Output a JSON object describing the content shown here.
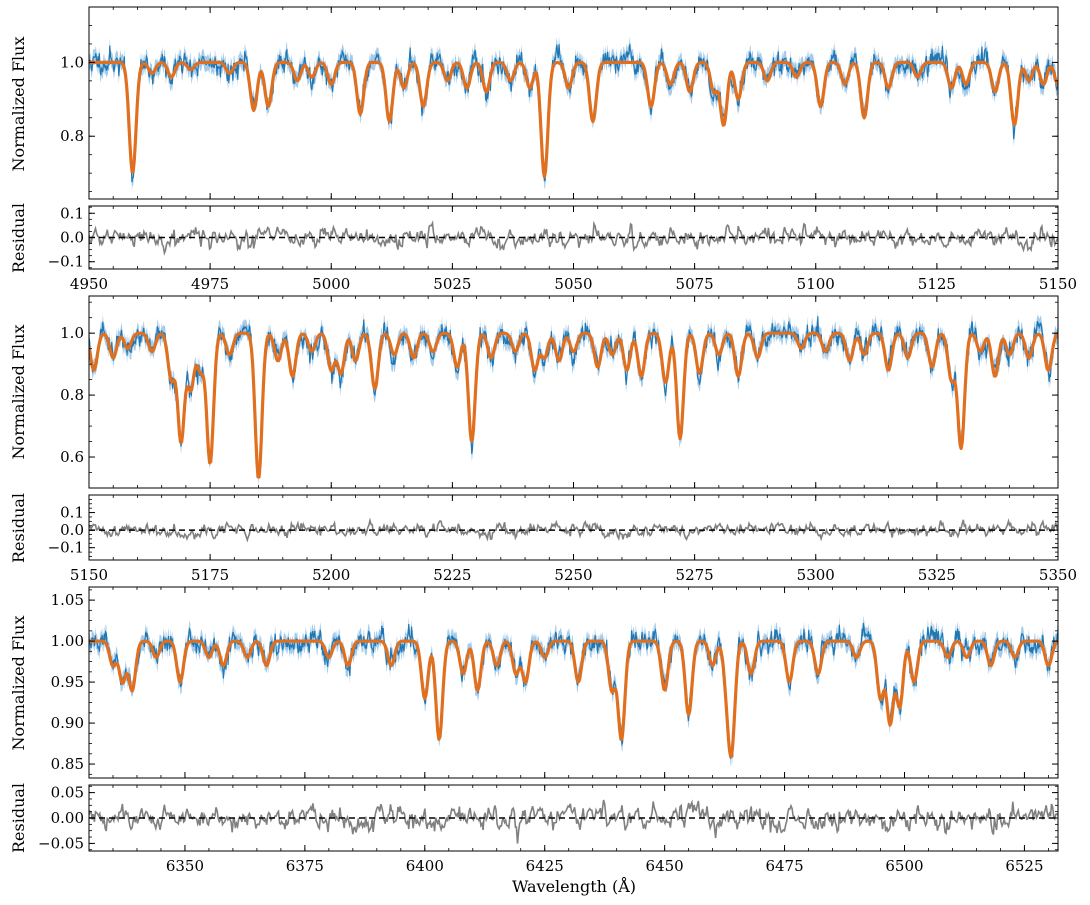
{
  "figure": {
    "xlabel": "Wavelength (Å)"
  },
  "colors": {
    "observed": "#1f77b4",
    "observed_error_band": "#a6cbe8",
    "model": "#e07020",
    "residual": "#808080",
    "zero_line": "#000000"
  },
  "chart_data": [
    {
      "type": "line",
      "panel": "spectrum",
      "ylabel": "Normalized Flux",
      "xlim": [
        4950,
        5150
      ],
      "ylim": [
        0.63,
        1.15
      ],
      "yticks": [
        0.8,
        1.0
      ],
      "ytick_labels": [
        "0.8",
        "1.0"
      ],
      "series": [
        {
          "name": "observed",
          "style": "blue noisy spectrum with light-blue error band"
        },
        {
          "name": "model",
          "style": "orange smooth fit"
        }
      ],
      "continuum": 1.0,
      "absorption_lines": [
        [
          4959,
          0.3
        ],
        [
          4963,
          0.03
        ],
        [
          4967,
          0.04
        ],
        [
          4971,
          0.02
        ],
        [
          4979,
          0.03
        ],
        [
          4984,
          0.13
        ],
        [
          4987,
          0.12
        ],
        [
          4993,
          0.05
        ],
        [
          4996,
          0.04
        ],
        [
          5000,
          0.06
        ],
        [
          5006,
          0.14
        ],
        [
          5012,
          0.16
        ],
        [
          5015,
          0.07
        ],
        [
          5019,
          0.12
        ],
        [
          5024,
          0.05
        ],
        [
          5028,
          0.07
        ],
        [
          5032,
          0.08
        ],
        [
          5037,
          0.05
        ],
        [
          5041,
          0.07
        ],
        [
          5044,
          0.31
        ],
        [
          5049,
          0.07
        ],
        [
          5054,
          0.16
        ],
        [
          5066,
          0.12
        ],
        [
          5070,
          0.06
        ],
        [
          5074,
          0.08
        ],
        [
          5079,
          0.08
        ],
        [
          5081,
          0.17
        ],
        [
          5084,
          0.1
        ],
        [
          5090,
          0.05
        ],
        [
          5096,
          0.04
        ],
        [
          5101,
          0.12
        ],
        [
          5106,
          0.06
        ],
        [
          5110,
          0.15
        ],
        [
          5115,
          0.07
        ],
        [
          5121,
          0.04
        ],
        [
          5128,
          0.07
        ],
        [
          5131,
          0.06
        ],
        [
          5137,
          0.08
        ],
        [
          5141,
          0.17
        ],
        [
          5144,
          0.05
        ],
        [
          5147,
          0.06
        ],
        [
          5150,
          0.06
        ]
      ]
    },
    {
      "type": "line",
      "panel": "residual",
      "ylabel": "Residual",
      "xlim": [
        4950,
        5150
      ],
      "ylim": [
        -0.13,
        0.13
      ],
      "yticks": [
        -0.1,
        0.0,
        0.1
      ],
      "ytick_labels": [
        "−0.1",
        "0.0",
        "0.1"
      ],
      "xticks": [
        4950,
        4975,
        5000,
        5025,
        5050,
        5075,
        5100,
        5125,
        5150
      ],
      "xtick_labels": [
        "4950",
        "4975",
        "5000",
        "5025",
        "5050",
        "5075",
        "5100",
        "5125",
        "5150"
      ],
      "zero_line": 0.0,
      "noise_amplitude": 0.03
    },
    {
      "type": "line",
      "panel": "spectrum",
      "ylabel": "Normalized Flux",
      "xlim": [
        5150,
        5350
      ],
      "ylim": [
        0.5,
        1.12
      ],
      "yticks": [
        0.6,
        0.8,
        1.0
      ],
      "ytick_labels": [
        "0.6",
        "0.8",
        "1.0"
      ],
      "series": [
        {
          "name": "observed",
          "style": "blue noisy spectrum with light-blue error band"
        },
        {
          "name": "model",
          "style": "orange smooth fit"
        }
      ],
      "continuum": 1.0,
      "absorption_lines": [
        [
          5151,
          0.12
        ],
        [
          5155,
          0.08
        ],
        [
          5158,
          0.05
        ],
        [
          5163,
          0.06
        ],
        [
          5167,
          0.15
        ],
        [
          5169,
          0.35
        ],
        [
          5171,
          0.18
        ],
        [
          5173,
          0.12
        ],
        [
          5175,
          0.42
        ],
        [
          5179,
          0.07
        ],
        [
          5185,
          0.47
        ],
        [
          5189,
          0.09
        ],
        [
          5192,
          0.14
        ],
        [
          5196,
          0.06
        ],
        [
          5200,
          0.12
        ],
        [
          5202,
          0.13
        ],
        [
          5205,
          0.09
        ],
        [
          5209,
          0.18
        ],
        [
          5213,
          0.07
        ],
        [
          5217,
          0.08
        ],
        [
          5221,
          0.06
        ],
        [
          5226,
          0.11
        ],
        [
          5229,
          0.35
        ],
        [
          5233,
          0.08
        ],
        [
          5238,
          0.06
        ],
        [
          5242,
          0.12
        ],
        [
          5244,
          0.08
        ],
        [
          5247,
          0.09
        ],
        [
          5250,
          0.06
        ],
        [
          5255,
          0.11
        ],
        [
          5258,
          0.07
        ],
        [
          5261,
          0.12
        ],
        [
          5264,
          0.14
        ],
        [
          5269,
          0.16
        ],
        [
          5272,
          0.34
        ],
        [
          5276,
          0.13
        ],
        [
          5280,
          0.07
        ],
        [
          5284,
          0.14
        ],
        [
          5288,
          0.08
        ],
        [
          5297,
          0.05
        ],
        [
          5302,
          0.06
        ],
        [
          5307,
          0.09
        ],
        [
          5310,
          0.07
        ],
        [
          5315,
          0.12
        ],
        [
          5319,
          0.08
        ],
        [
          5324,
          0.11
        ],
        [
          5328,
          0.15
        ],
        [
          5330,
          0.37
        ],
        [
          5334,
          0.06
        ],
        [
          5337,
          0.14
        ],
        [
          5340,
          0.07
        ],
        [
          5344,
          0.08
        ],
        [
          5348,
          0.12
        ]
      ]
    },
    {
      "type": "line",
      "panel": "residual",
      "ylabel": "Residual",
      "xlim": [
        5150,
        5350
      ],
      "ylim": [
        -0.17,
        0.2
      ],
      "yticks": [
        -0.1,
        0.0,
        0.1
      ],
      "ytick_labels": [
        "−0.1",
        "0.0",
        "0.1"
      ],
      "xticks": [
        5150,
        5175,
        5200,
        5225,
        5250,
        5275,
        5300,
        5325,
        5350
      ],
      "xtick_labels": [
        "5150",
        "5175",
        "5200",
        "5225",
        "5250",
        "5275",
        "5300",
        "5325",
        "5350"
      ],
      "zero_line": 0.0,
      "noise_amplitude": 0.03
    },
    {
      "type": "line",
      "panel": "spectrum",
      "ylabel": "Normalized Flux",
      "xlim": [
        6330,
        6532
      ],
      "ylim": [
        0.833,
        1.066
      ],
      "yticks": [
        0.85,
        0.9,
        0.95,
        1.0,
        1.05
      ],
      "ytick_labels": [
        "0.85",
        "0.90",
        "0.95",
        "1.00",
        "1.05"
      ],
      "series": [
        {
          "name": "observed",
          "style": "blue noisy spectrum with light-blue error band"
        },
        {
          "name": "model",
          "style": "orange smooth fit"
        }
      ],
      "continuum": 1.0,
      "absorption_lines": [
        [
          6335,
          0.03
        ],
        [
          6337,
          0.05
        ],
        [
          6339,
          0.06
        ],
        [
          6344,
          0.02
        ],
        [
          6349,
          0.05
        ],
        [
          6355,
          0.02
        ],
        [
          6358,
          0.03
        ],
        [
          6363,
          0.02
        ],
        [
          6367,
          0.03
        ],
        [
          6380,
          0.02
        ],
        [
          6384,
          0.03
        ],
        [
          6393,
          0.03
        ],
        [
          6400,
          0.07
        ],
        [
          6403,
          0.12
        ],
        [
          6408,
          0.04
        ],
        [
          6411,
          0.06
        ],
        [
          6415,
          0.03
        ],
        [
          6419,
          0.04
        ],
        [
          6421,
          0.05
        ],
        [
          6425,
          0.02
        ],
        [
          6432,
          0.05
        ],
        [
          6439,
          0.06
        ],
        [
          6441,
          0.12
        ],
        [
          6450,
          0.06
        ],
        [
          6455,
          0.09
        ],
        [
          6460,
          0.03
        ],
        [
          6463,
          0.05
        ],
        [
          6464,
          0.12
        ],
        [
          6468,
          0.04
        ],
        [
          6476,
          0.05
        ],
        [
          6482,
          0.04
        ],
        [
          6490,
          0.02
        ],
        [
          6495,
          0.07
        ],
        [
          6497,
          0.1
        ],
        [
          6499,
          0.08
        ],
        [
          6502,
          0.05
        ],
        [
          6509,
          0.02
        ],
        [
          6513,
          0.02
        ],
        [
          6518,
          0.03
        ],
        [
          6523,
          0.02
        ],
        [
          6530,
          0.03
        ]
      ]
    },
    {
      "type": "line",
      "panel": "residual",
      "ylabel": "Residual",
      "xlim": [
        6330,
        6532
      ],
      "ylim": [
        -0.065,
        0.065
      ],
      "yticks": [
        -0.05,
        0.0,
        0.05
      ],
      "ytick_labels": [
        "−0.05",
        "0.00",
        "0.05"
      ],
      "xticks": [
        6350,
        6375,
        6400,
        6425,
        6450,
        6475,
        6500,
        6525
      ],
      "xtick_labels": [
        "6350",
        "6375",
        "6400",
        "6425",
        "6450",
        "6475",
        "6500",
        "6525"
      ],
      "zero_line": 0.0,
      "noise_amplitude": 0.018
    }
  ]
}
